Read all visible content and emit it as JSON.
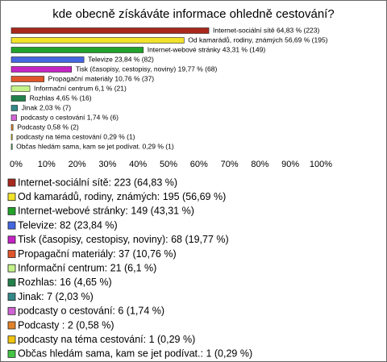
{
  "chart_data": {
    "type": "bar",
    "orientation": "horizontal",
    "title": "kde obecně získáváte informace ohledně cestování?",
    "categories": [
      "Internet-sociální sítě",
      "Od kamarádů, rodiny, známých",
      "Internet-webové stránky",
      "Televize",
      "Tisk (časopisy, cestopisy, noviny)",
      "Propagační materiály",
      "Informační centrum",
      "Rozhlas",
      "Jinak",
      "podcasty o cestování",
      "Podcasty",
      "podcasty na téma cestování",
      "Občas hledám sama, kam se jet podívat."
    ],
    "values": [
      64.83,
      56.69,
      43.31,
      23.84,
      19.77,
      10.76,
      6.1,
      4.65,
      2.03,
      1.74,
      0.58,
      0.29,
      0.29
    ],
    "value_labels": [
      "Internet-sociální sítě 64,83 % (223)",
      "Od kamarádů, rodiny, známých 56,69 % (195)",
      "Internet-webové stránky 43,31 % (149)",
      "Televize 23,84 % (82)",
      "Tisk (časopisy, cestopisy, noviny) 19,77 % (68)",
      "Propagační materiály 10,76 % (37)",
      "Informační centrum 6,1 % (21)",
      "Rozhlas 4,65 % (16)",
      "Jinak 2,03 % (7)",
      "podcasty o cestování 1,74 % (6)",
      "Podcasty  0,58 % (2)",
      "podcasty na téma cestování 0,29 % (1)",
      "Občas hledám sama, kam se jet podívat. 0,29 % (1)"
    ],
    "legend": [
      "Internet-sociální sítě: 223 (64,83 %)",
      "Od kamarádů, rodiny, známých: 195 (56,69 %)",
      "Internet-webové stránky: 149 (43,31 %)",
      "Televize: 82 (23,84 %)",
      "Tisk (časopisy, cestopisy, noviny): 68 (19,77 %)",
      "Propagační materiály: 37 (10,76 %)",
      "Informační centrum: 21 (6,1 %)",
      "Rozhlas: 16 (4,65 %)",
      "Jinak: 7 (2,03 %)",
      "podcasty o cestování: 6 (1,74 %)",
      "Podcasty : 2 (0,58 %)",
      "podcasty na téma cestování: 1 (0,29 %)",
      "Občas hledám sama, kam se jet podívat.: 1 (0,29 %)"
    ],
    "colors": [
      "#a8281c",
      "#f2e22a",
      "#22a22a",
      "#4466e0",
      "#c424c4",
      "#e0562a",
      "#c4f28a",
      "#22804a",
      "#348888",
      "#d064d4",
      "#e0822a",
      "#f0c410",
      "#44c444"
    ],
    "xlim": [
      0,
      100
    ],
    "xticks": [
      {
        "value": 0,
        "label": "0%"
      },
      {
        "value": 10,
        "label": "10%"
      },
      {
        "value": 20,
        "label": "20%"
      },
      {
        "value": 30,
        "label": "30%"
      },
      {
        "value": 40,
        "label": "40%"
      },
      {
        "value": 50,
        "label": "50%"
      },
      {
        "value": 60,
        "label": "60%"
      },
      {
        "value": 70,
        "label": "70%"
      },
      {
        "value": 80,
        "label": "80%"
      },
      {
        "value": 90,
        "label": "90%"
      },
      {
        "value": 100,
        "label": "100%"
      }
    ],
    "grid": false
  }
}
